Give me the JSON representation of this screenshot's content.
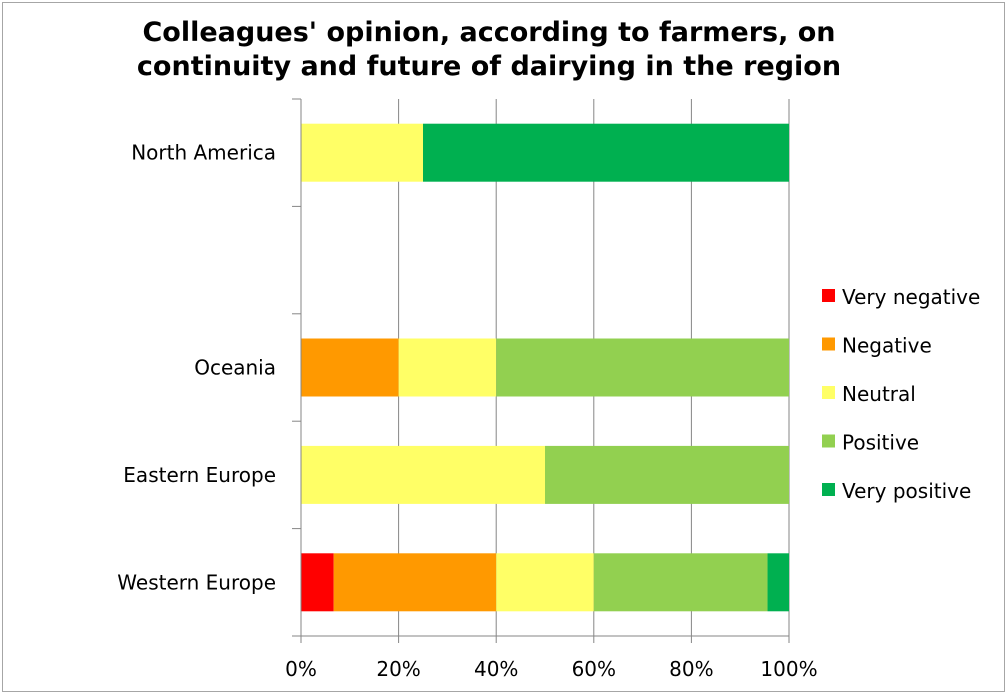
{
  "chart_data": {
    "type": "bar",
    "orientation": "horizontal",
    "stacked": "percent",
    "title": "Colleagues' opinion, according to farmers, on continuity and future of dairying in the region",
    "title_lines": [
      "Colleagues' opinion, according to farmers, on",
      "continuity and future of dairying in the region"
    ],
    "categories": [
      "North America",
      "",
      "Oceania",
      "Eastern Europe",
      "Western Europe"
    ],
    "series": [
      {
        "name": "Very negative",
        "color": "#ff0000",
        "values": [
          0,
          0,
          0,
          0,
          6.7
        ]
      },
      {
        "name": "Negative",
        "color": "#ff9900",
        "values": [
          0,
          0,
          20,
          0,
          33.3
        ]
      },
      {
        "name": "Neutral",
        "color": "#ffff66",
        "values": [
          25,
          0,
          20,
          50,
          20
        ]
      },
      {
        "name": "Positive",
        "color": "#92d050",
        "values": [
          0,
          0,
          60,
          50,
          35.6
        ]
      },
      {
        "name": "Very positive",
        "color": "#00b050",
        "values": [
          75,
          0,
          0,
          0,
          4.4
        ]
      }
    ],
    "xlim": [
      0,
      100
    ],
    "xticks": [
      "0%",
      "20%",
      "40%",
      "60%",
      "80%",
      "100%"
    ],
    "grid": true,
    "legend": "right"
  }
}
